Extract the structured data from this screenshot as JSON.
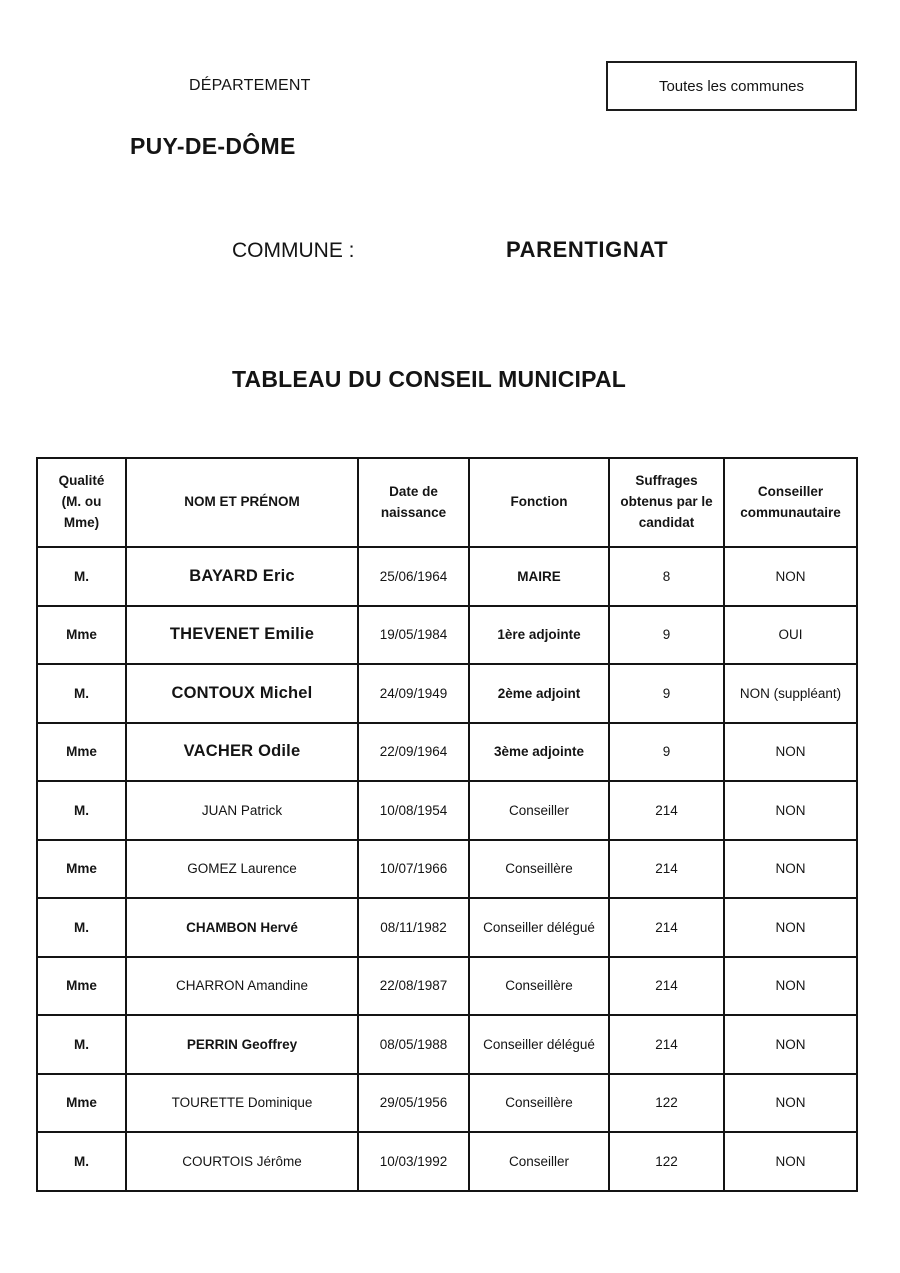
{
  "page": {
    "department_label": "DÉPARTEMENT",
    "department_name": "PUY-DE-DÔME",
    "all_communes_box_label": "Toutes les communes",
    "commune_label": "COMMUNE :",
    "commune_name": "PARENTIGNAT",
    "title": "TABLEAU DU CONSEIL MUNICIPAL"
  },
  "colors": {
    "text": "#141414",
    "border": "#141414",
    "background": "#ffffff"
  },
  "table": {
    "headers": [
      "Qualité\n(M. ou\nMme)",
      "NOM ET PRÉNOM",
      "Date de\nnaissance",
      "Fonction",
      "Suffrages\nobtenus par le\ncandidat",
      "Conseiller\ncommunautaire"
    ],
    "rows": [
      {
        "qualite": "M.",
        "nom": "BAYARD  Eric",
        "nom_style": "large-bold",
        "naissance": "25/06/1964",
        "fonction": "MAIRE",
        "fonction_bold": true,
        "suffrages": "8",
        "conseiller_communautaire": "NON"
      },
      {
        "qualite": "Mme",
        "nom": "THEVENET Emilie",
        "nom_style": "large-bold",
        "naissance": "19/05/1984",
        "fonction": "1ère adjointe",
        "fonction_bold": true,
        "suffrages": "9",
        "conseiller_communautaire": "OUI"
      },
      {
        "qualite": "M.",
        "nom": "CONTOUX Michel",
        "nom_style": "large-bold",
        "naissance": "24/09/1949",
        "fonction": "2ème adjoint",
        "fonction_bold": true,
        "suffrages": "9",
        "conseiller_communautaire": "NON (suppléant)"
      },
      {
        "qualite": "Mme",
        "nom": "VACHER Odile",
        "nom_style": "large-bold",
        "naissance": "22/09/1964",
        "fonction": "3ème adjointe",
        "fonction_bold": true,
        "suffrages": "9",
        "conseiller_communautaire": "NON"
      },
      {
        "qualite": "M.",
        "nom": "JUAN Patrick",
        "nom_style": "regular",
        "naissance": "10/08/1954",
        "fonction": "Conseiller",
        "fonction_bold": false,
        "suffrages": "214",
        "conseiller_communautaire": "NON"
      },
      {
        "qualite": "Mme",
        "nom": "GOMEZ Laurence",
        "nom_style": "regular",
        "naissance": "10/07/1966",
        "fonction": "Conseillère",
        "fonction_bold": false,
        "suffrages": "214",
        "conseiller_communautaire": "NON"
      },
      {
        "qualite": "M.",
        "nom": "CHAMBON Hervé",
        "nom_style": "bold",
        "naissance": "08/11/1982",
        "fonction": "Conseiller délégué",
        "fonction_bold": false,
        "suffrages": "214",
        "conseiller_communautaire": "NON"
      },
      {
        "qualite": "Mme",
        "nom": "CHARRON Amandine",
        "nom_style": "regular",
        "naissance": "22/08/1987",
        "fonction": "Conseillère",
        "fonction_bold": false,
        "suffrages": "214",
        "conseiller_communautaire": "NON"
      },
      {
        "qualite": "M.",
        "nom": "PERRIN Geoffrey",
        "nom_style": "bold",
        "naissance": "08/05/1988",
        "fonction": "Conseiller délégué",
        "fonction_bold": false,
        "suffrages": "214",
        "conseiller_communautaire": "NON"
      },
      {
        "qualite": "Mme",
        "nom": "TOURETTE Dominique",
        "nom_style": "regular",
        "naissance": "29/05/1956",
        "fonction": "Conseillère",
        "fonction_bold": false,
        "suffrages": "122",
        "conseiller_communautaire": "NON"
      },
      {
        "qualite": "M.",
        "nom": "COURTOIS Jérôme",
        "nom_style": "regular",
        "naissance": "10/03/1992",
        "fonction": "Conseiller",
        "fonction_bold": false,
        "suffrages": "122",
        "conseiller_communautaire": "NON"
      }
    ]
  }
}
